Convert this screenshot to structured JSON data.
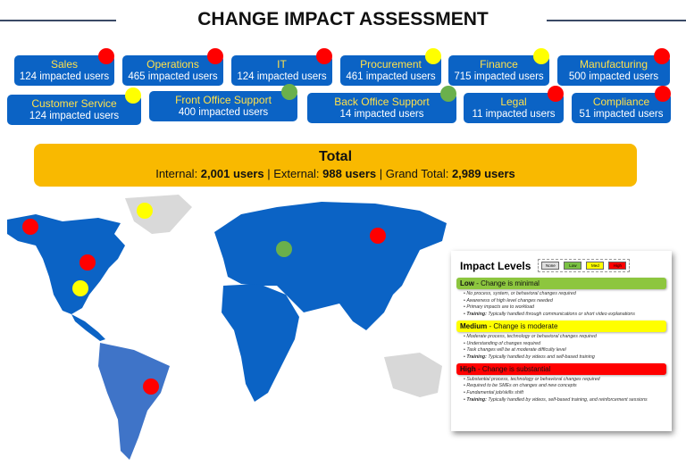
{
  "title": "CHANGE IMPACT ASSESSMENT",
  "colors": {
    "dept_box": "#0b63c5",
    "high": "#ff0000",
    "medium": "#ffff00",
    "low": "#6ab04c",
    "total": "#f9b900",
    "map": "#0b63c5"
  },
  "departments": [
    {
      "name": "Sales",
      "count": "124 impacted users",
      "impact": "high"
    },
    {
      "name": "Operations",
      "count": "465 impacted users",
      "impact": "high"
    },
    {
      "name": "IT",
      "count": "124 impacted users",
      "impact": "high"
    },
    {
      "name": "Procurement",
      "count": "461 impacted users",
      "impact": "medium"
    },
    {
      "name": "Finance",
      "count": "715 impacted users",
      "impact": "medium"
    },
    {
      "name": "Manufacturing",
      "count": "500 impacted users",
      "impact": "high"
    },
    {
      "name": "Customer Service",
      "count": "124 impacted users",
      "impact": "medium"
    },
    {
      "name": "Front Office Support",
      "count": "400 impacted users",
      "impact": "low"
    },
    {
      "name": "Back Office Support",
      "count": "14 impacted users",
      "impact": "low"
    },
    {
      "name": "Legal",
      "count": "11 impacted users",
      "impact": "high"
    },
    {
      "name": "Compliance",
      "count": "51 impacted users",
      "impact": "high"
    }
  ],
  "total": {
    "title": "Total",
    "internal_label": "Internal: ",
    "internal": "2,001 users",
    "external_label": " | External: ",
    "external": "988 users",
    "grand_label": " | Grand Total: ",
    "grand": "2,989 users"
  },
  "map_markers": [
    {
      "region": "Alaska",
      "impact": "high"
    },
    {
      "region": "Greenland",
      "impact": "medium"
    },
    {
      "region": "Canada",
      "impact": "high"
    },
    {
      "region": "United States",
      "impact": "medium"
    },
    {
      "region": "Eastern Europe",
      "impact": "low"
    },
    {
      "region": "Russia",
      "impact": "high"
    },
    {
      "region": "Brazil",
      "impact": "high"
    }
  ],
  "legend": {
    "title": "Impact Levels",
    "keys": [
      "None",
      "Low",
      "Med",
      "High"
    ],
    "levels": [
      {
        "name": "Low",
        "desc": " - Change is minimal",
        "items": [
          "No process, system, or behavioral changes required",
          "Awareness of high level changes needed",
          "Primary impacts are to workload"
        ],
        "training": "Typically handled through communications or short video explanations"
      },
      {
        "name": "Medium",
        "desc": " - Change is moderate",
        "items": [
          "Moderate process, technology or behavioral changes required",
          "Understanding of changes required",
          "Task changes will be at moderate difficulty level"
        ],
        "training": "Typically handled by videos and self-based training"
      },
      {
        "name": "High",
        "desc": " - Change is substantial",
        "items": [
          "Substantial process, technology or behavioral changes required",
          "Required to be SMEs on changes and new concepts",
          "Fundamental job/skills shift"
        ],
        "training": "Typically handled by videos, self-based training, and reinforcement sessions"
      }
    ],
    "training_label": "Training:"
  }
}
